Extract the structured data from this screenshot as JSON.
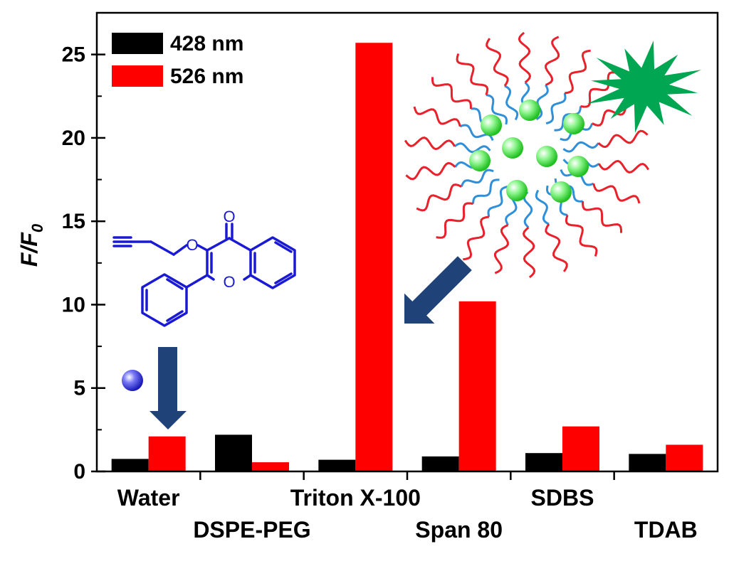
{
  "chart_data": {
    "type": "bar",
    "categories": [
      "Water",
      "DSPE-PEG",
      "Triton X-100",
      "Span 80",
      "SDBS",
      "TDAB"
    ],
    "series": [
      {
        "name": "428 nm",
        "color": "#000000",
        "values": [
          0.75,
          2.2,
          0.7,
          0.9,
          1.1,
          1.05
        ]
      },
      {
        "name": "526 nm",
        "color": "#ff0000",
        "values": [
          2.1,
          0.55,
          25.7,
          10.2,
          2.7,
          1.6
        ]
      }
    ],
    "ylabel_main": "F/F",
    "ylabel_sub": "0",
    "ylim": [
      0,
      27.5
    ],
    "yticks": [
      0,
      5,
      10,
      15,
      20,
      25
    ],
    "legend_position": "top-left",
    "grid": false
  },
  "molecule": {
    "atom_labels": [
      "O",
      "O",
      "O"
    ]
  },
  "colors": {
    "molecule": "#1a1ad4",
    "arrow": "#1f4378",
    "micelle_tail": "#e8212b",
    "micelle_head": "#2f8fd8",
    "micelle_bead": "#3fe83f",
    "star": "#00a651",
    "sphere": "#2a2ae0"
  }
}
